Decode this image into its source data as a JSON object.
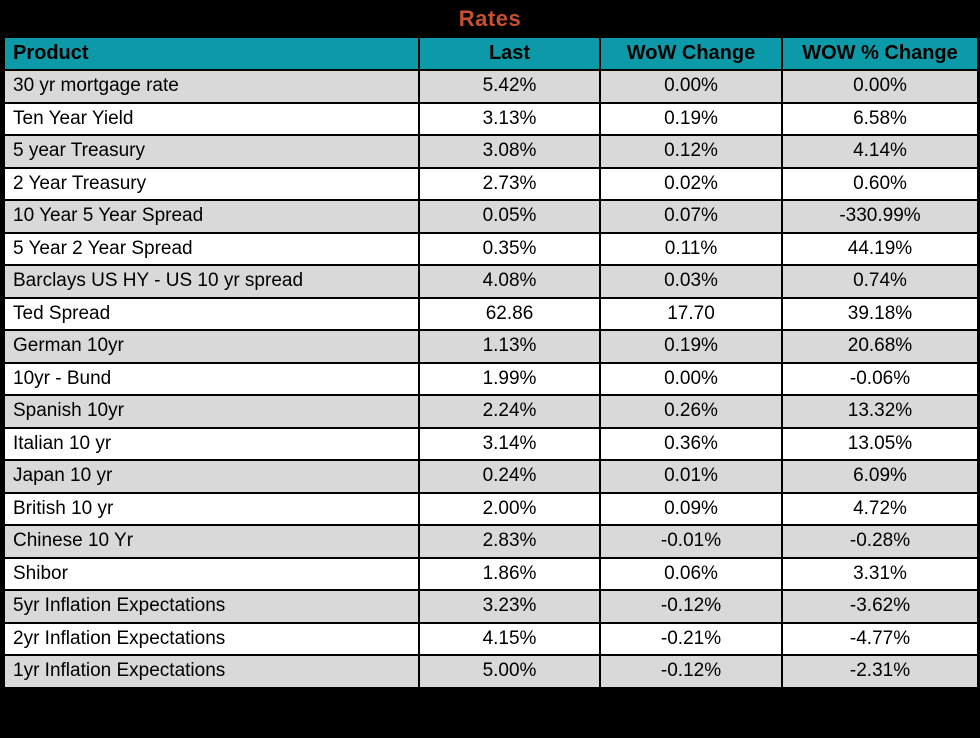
{
  "title": "Rates",
  "colors": {
    "title_text": "#C7502F",
    "header_bg": "#0D9AA8",
    "row_alt_bg": "#D9D9D9",
    "row_bg": "#FFFFFF",
    "grid": "#000000",
    "frame_bg": "#000000"
  },
  "chart_data": {
    "type": "table",
    "title": "Rates",
    "columns": [
      "Product",
      "Last",
      "WoW Change",
      "WOW % Change"
    ],
    "rows": [
      [
        "30 yr mortgage rate",
        "5.42%",
        "0.00%",
        "0.00%"
      ],
      [
        "Ten Year Yield",
        "3.13%",
        "0.19%",
        "6.58%"
      ],
      [
        "5 year Treasury",
        "3.08%",
        "0.12%",
        "4.14%"
      ],
      [
        "2 Year Treasury",
        "2.73%",
        "0.02%",
        "0.60%"
      ],
      [
        "10 Year 5 Year Spread",
        "0.05%",
        "0.07%",
        "-330.99%"
      ],
      [
        "5 Year 2 Year Spread",
        "0.35%",
        "0.11%",
        "44.19%"
      ],
      [
        "Barclays US HY - US 10 yr spread",
        "4.08%",
        "0.03%",
        "0.74%"
      ],
      [
        "Ted Spread",
        "62.86",
        "17.70",
        "39.18%"
      ],
      [
        "German 10yr",
        "1.13%",
        "0.19%",
        "20.68%"
      ],
      [
        "10yr - Bund",
        "1.99%",
        "0.00%",
        "-0.06%"
      ],
      [
        "Spanish 10yr",
        "2.24%",
        "0.26%",
        "13.32%"
      ],
      [
        "Italian 10 yr",
        "3.14%",
        "0.36%",
        "13.05%"
      ],
      [
        "Japan 10 yr",
        "0.24%",
        "0.01%",
        "6.09%"
      ],
      [
        "British 10 yr",
        "2.00%",
        "0.09%",
        "4.72%"
      ],
      [
        "Chinese 10 Yr",
        "2.83%",
        "-0.01%",
        "-0.28%"
      ],
      [
        "Shibor",
        "1.86%",
        "0.06%",
        "3.31%"
      ],
      [
        "5yr Inflation Expectations",
        "3.23%",
        "-0.12%",
        "-3.62%"
      ],
      [
        "2yr Inflation Expectations",
        "4.15%",
        "-0.21%",
        "-4.77%"
      ],
      [
        "1yr Inflation Expectations",
        "5.00%",
        "-0.12%",
        "-2.31%"
      ]
    ]
  }
}
